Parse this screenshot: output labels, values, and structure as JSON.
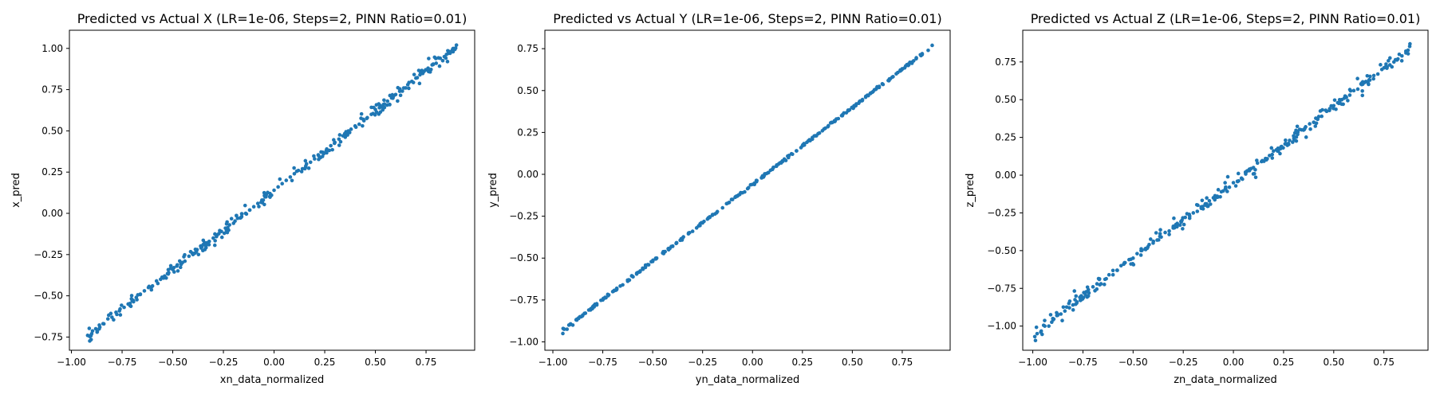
{
  "chart_data": [
    {
      "type": "scatter",
      "title": "Predicted vs Actual X (LR=1e-06, Steps=2, PINN Ratio=0.01)",
      "xlabel": "xn_data_normalized",
      "ylabel": "x_pred",
      "xlim": [
        -1.01,
        0.99
      ],
      "ylim": [
        -0.83,
        1.11
      ],
      "xticks": [
        -1.0,
        -0.75,
        -0.5,
        -0.25,
        0.0,
        0.25,
        0.5,
        0.75
      ],
      "yticks": [
        -0.75,
        -0.5,
        -0.25,
        0.0,
        0.25,
        0.5,
        0.75,
        1.0
      ],
      "tick_labels_x": [
        "−1.00",
        "−0.75",
        "−0.50",
        "−0.25",
        "0.00",
        "0.25",
        "0.50",
        "0.75"
      ],
      "tick_labels_y": [
        "−0.75",
        "−0.50",
        "−0.25",
        "0.00",
        "0.25",
        "0.50",
        "0.75",
        "1.00"
      ],
      "point_color": "#1f77b4",
      "grid": false,
      "trend": {
        "slope": 0.967,
        "intercept": 0.14,
        "spread": 0.035
      },
      "series": [
        {
          "x": [
            -0.92,
            -0.9,
            -0.88,
            -0.86,
            -0.84,
            -0.82,
            -0.8,
            -0.78,
            -0.76,
            -0.74,
            -0.72,
            -0.7,
            -0.68,
            -0.66,
            -0.64,
            -0.62,
            -0.6,
            -0.58,
            -0.56,
            -0.54,
            -0.52,
            -0.5,
            -0.48,
            -0.46,
            -0.44,
            -0.42,
            -0.4,
            -0.38,
            -0.36,
            -0.34,
            -0.32,
            -0.3,
            -0.28,
            -0.26,
            -0.24,
            -0.22,
            -0.2,
            -0.18,
            -0.16,
            -0.14,
            -0.12,
            -0.1,
            -0.08,
            -0.06,
            -0.04,
            -0.02,
            0.0,
            0.02,
            0.04,
            0.06,
            0.08,
            0.1,
            0.12,
            0.14,
            0.16,
            0.18,
            0.2,
            0.22,
            0.24,
            0.26,
            0.28,
            0.3,
            0.32,
            0.34,
            0.36,
            0.38,
            0.4,
            0.42,
            0.44,
            0.46,
            0.48,
            0.5,
            0.52,
            0.54,
            0.56,
            0.58,
            0.6,
            0.62,
            0.64,
            0.66,
            0.68,
            0.7,
            0.72,
            0.74,
            0.76,
            0.78,
            0.8,
            0.82,
            0.84,
            0.86,
            0.88,
            0.9
          ],
          "y": [
            -0.74,
            -0.73,
            -0.7,
            -0.69,
            -0.67,
            -0.64,
            -0.63,
            -0.6,
            -0.58,
            -0.57,
            -0.55,
            -0.53,
            -0.51,
            -0.49,
            -0.47,
            -0.45,
            -0.44,
            -0.41,
            -0.4,
            -0.38,
            -0.36,
            -0.34,
            -0.32,
            -0.3,
            -0.29,
            -0.26,
            -0.25,
            -0.22,
            -0.21,
            -0.19,
            -0.17,
            -0.15,
            -0.13,
            -0.11,
            -0.09,
            -0.07,
            -0.06,
            -0.03,
            -0.02,
            0.0,
            0.02,
            0.04,
            0.06,
            0.08,
            0.1,
            0.12,
            0.14,
            0.16,
            0.18,
            0.2,
            0.22,
            0.24,
            0.26,
            0.27,
            0.3,
            0.31,
            0.33,
            0.35,
            0.37,
            0.39,
            0.41,
            0.43,
            0.45,
            0.47,
            0.49,
            0.51,
            0.53,
            0.54,
            0.57,
            0.58,
            0.6,
            0.63,
            0.64,
            0.66,
            0.68,
            0.7,
            0.72,
            0.74,
            0.76,
            0.78,
            0.8,
            0.82,
            0.84,
            0.86,
            0.88,
            0.9,
            0.91,
            0.94,
            0.95,
            0.97,
            0.99,
            1.02
          ]
        }
      ]
    },
    {
      "type": "scatter",
      "title": "Predicted vs Actual Y (LR=1e-06, Steps=2, PINN Ratio=0.01)",
      "xlabel": "yn_data_normalized",
      "ylabel": "y_pred",
      "xlim": [
        -1.04,
        0.99
      ],
      "ylim": [
        -1.05,
        0.86
      ],
      "xticks": [
        -1.0,
        -0.75,
        -0.5,
        -0.25,
        0.0,
        0.25,
        0.5,
        0.75
      ],
      "yticks": [
        -1.0,
        -0.75,
        -0.5,
        -0.25,
        0.0,
        0.25,
        0.5,
        0.75
      ],
      "tick_labels_x": [
        "−1.00",
        "−0.75",
        "−0.50",
        "−0.25",
        "0.00",
        "0.25",
        "0.50",
        "0.75"
      ],
      "tick_labels_y": [
        "−1.00",
        "−0.75",
        "−0.50",
        "−0.25",
        "0.00",
        "0.25",
        "0.50",
        "0.75"
      ],
      "point_color": "#1f77b4",
      "grid": false,
      "trend": {
        "slope": 0.917,
        "intercept": -0.06,
        "spread": 0.006
      },
      "series": [
        {
          "x": [
            -0.95,
            -0.9,
            -0.88,
            -0.85,
            -0.82,
            -0.8,
            -0.78,
            -0.75,
            -0.72,
            -0.7,
            -0.68,
            -0.65,
            -0.62,
            -0.6,
            -0.58,
            -0.55,
            -0.52,
            -0.5,
            -0.48,
            -0.45,
            -0.42,
            -0.4,
            -0.38,
            -0.35,
            -0.32,
            -0.3,
            -0.28,
            -0.25,
            -0.22,
            -0.2,
            -0.18,
            -0.15,
            -0.12,
            -0.1,
            -0.08,
            -0.05,
            -0.02,
            0.0,
            0.02,
            0.05,
            0.08,
            0.1,
            0.12,
            0.15,
            0.18,
            0.2,
            0.22,
            0.25,
            0.28,
            0.3,
            0.32,
            0.35,
            0.38,
            0.4,
            0.42,
            0.45,
            0.48,
            0.5,
            0.52,
            0.55,
            0.58,
            0.6,
            0.62,
            0.65,
            0.68,
            0.7,
            0.72,
            0.75,
            0.78,
            0.8,
            0.82,
            0.85,
            0.88,
            0.9
          ],
          "y": [
            -0.95,
            -0.9,
            -0.87,
            -0.84,
            -0.81,
            -0.79,
            -0.78,
            -0.75,
            -0.72,
            -0.7,
            -0.68,
            -0.66,
            -0.63,
            -0.61,
            -0.59,
            -0.56,
            -0.54,
            -0.52,
            -0.5,
            -0.47,
            -0.45,
            -0.43,
            -0.41,
            -0.38,
            -0.35,
            -0.34,
            -0.32,
            -0.29,
            -0.26,
            -0.24,
            -0.23,
            -0.2,
            -0.17,
            -0.15,
            -0.13,
            -0.11,
            -0.08,
            -0.06,
            -0.04,
            -0.01,
            0.01,
            0.03,
            0.05,
            0.08,
            0.1,
            0.12,
            0.14,
            0.17,
            0.2,
            0.21,
            0.23,
            0.26,
            0.29,
            0.31,
            0.33,
            0.35,
            0.38,
            0.4,
            0.42,
            0.44,
            0.47,
            0.49,
            0.51,
            0.54,
            0.56,
            0.58,
            0.6,
            0.63,
            0.65,
            0.67,
            0.69,
            0.72,
            0.74,
            0.77
          ]
        }
      ]
    },
    {
      "type": "scatter",
      "title": "Predicted vs Actual Z (LR=1e-06, Steps=2, PINN Ratio=0.01)",
      "xlabel": "zn_data_normalized",
      "ylabel": "z_pred",
      "xlim": [
        -1.05,
        0.97
      ],
      "ylim": [
        -1.16,
        0.96
      ],
      "xticks": [
        -1.0,
        -0.75,
        -0.5,
        -0.25,
        0.0,
        0.25,
        0.5,
        0.75
      ],
      "yticks": [
        -1.0,
        -0.75,
        -0.5,
        -0.25,
        0.0,
        0.25,
        0.5,
        0.75
      ],
      "tick_labels_x": [
        "−1.00",
        "−0.75",
        "−0.50",
        "−0.25",
        "0.00",
        "0.25",
        "0.50",
        "0.75"
      ],
      "tick_labels_y": [
        "−1.00",
        "−0.75",
        "−0.50",
        "−0.25",
        "0.00",
        "0.25",
        "0.50",
        "0.75"
      ],
      "point_color": "#1f77b4",
      "grid": false,
      "trend": {
        "slope": 1.01,
        "intercept": -0.05,
        "spread": 0.045
      },
      "series": [
        {
          "x": [
            -0.99,
            -0.96,
            -0.94,
            -0.92,
            -0.9,
            -0.88,
            -0.86,
            -0.84,
            -0.82,
            -0.8,
            -0.78,
            -0.76,
            -0.74,
            -0.72,
            -0.7,
            -0.68,
            -0.66,
            -0.64,
            -0.62,
            -0.6,
            -0.58,
            -0.56,
            -0.54,
            -0.52,
            -0.5,
            -0.48,
            -0.46,
            -0.44,
            -0.42,
            -0.4,
            -0.38,
            -0.36,
            -0.34,
            -0.32,
            -0.3,
            -0.28,
            -0.26,
            -0.24,
            -0.22,
            -0.2,
            -0.18,
            -0.16,
            -0.14,
            -0.12,
            -0.1,
            -0.08,
            -0.06,
            -0.04,
            -0.02,
            0.0,
            0.02,
            0.04,
            0.06,
            0.08,
            0.1,
            0.12,
            0.14,
            0.16,
            0.18,
            0.2,
            0.22,
            0.24,
            0.26,
            0.28,
            0.3,
            0.32,
            0.34,
            0.36,
            0.38,
            0.4,
            0.42,
            0.44,
            0.46,
            0.48,
            0.5,
            0.52,
            0.54,
            0.56,
            0.58,
            0.6,
            0.62,
            0.64,
            0.66,
            0.68,
            0.7,
            0.72,
            0.74,
            0.76,
            0.78,
            0.8,
            0.82,
            0.84,
            0.86,
            0.88
          ],
          "y": [
            -1.07,
            -1.04,
            -1.0,
            -1.0,
            -0.95,
            -0.93,
            -0.92,
            -0.9,
            -0.85,
            -0.86,
            -0.84,
            -0.82,
            -0.78,
            -0.78,
            -0.74,
            -0.72,
            -0.72,
            -0.69,
            -0.66,
            -0.66,
            -0.63,
            -0.6,
            -0.58,
            -0.56,
            -0.55,
            -0.52,
            -0.5,
            -0.49,
            -0.46,
            -0.45,
            -0.43,
            -0.41,
            -0.38,
            -0.37,
            -0.35,
            -0.32,
            -0.31,
            -0.28,
            -0.26,
            -0.25,
            -0.24,
            -0.22,
            -0.19,
            -0.17,
            -0.15,
            -0.14,
            -0.11,
            -0.09,
            -0.08,
            -0.05,
            -0.04,
            -0.02,
            0.02,
            0.03,
            0.05,
            0.08,
            0.09,
            0.11,
            0.13,
            0.16,
            0.16,
            0.19,
            0.21,
            0.23,
            0.26,
            0.27,
            0.3,
            0.32,
            0.34,
            0.35,
            0.37,
            0.39,
            0.43,
            0.44,
            0.46,
            0.48,
            0.5,
            0.52,
            0.53,
            0.56,
            0.57,
            0.6,
            0.62,
            0.63,
            0.66,
            0.67,
            0.7,
            0.72,
            0.73,
            0.75,
            0.77,
            0.79,
            0.81,
            0.87
          ]
        }
      ]
    }
  ]
}
